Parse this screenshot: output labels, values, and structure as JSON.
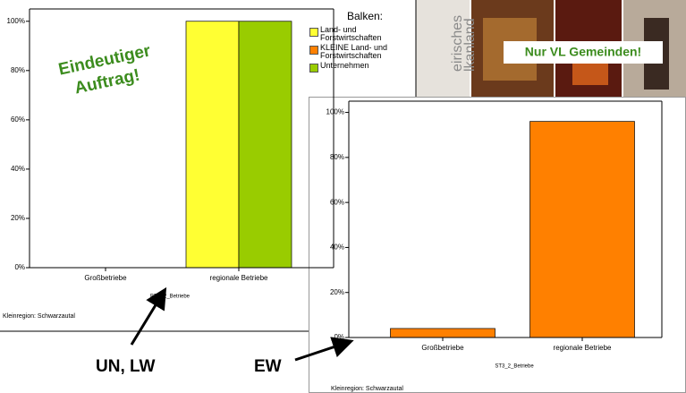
{
  "chart_data": [
    {
      "type": "bar",
      "categories": [
        "Großbetriebe",
        "regionale Betriebe"
      ],
      "series": [
        {
          "name": "Land- und Forstwirtschaften",
          "color": "#ffff33",
          "values": [
            0,
            100
          ]
        },
        {
          "name": "Unternehmen",
          "color": "#99cc00",
          "values": [
            0,
            100
          ]
        }
      ],
      "ylim": [
        0,
        105
      ],
      "yticks": [
        {
          "value": 0,
          "label": "0%"
        },
        {
          "value": 20,
          "label": "20%"
        },
        {
          "value": 40,
          "label": "40%"
        },
        {
          "value": 60,
          "label": "60%"
        },
        {
          "value": 80,
          "label": "80%"
        },
        {
          "value": 100,
          "label": "100%"
        }
      ],
      "x_label": "BR2_2_Betriebe",
      "note": "Kleinregion: Schwarzautal",
      "legend_title": "Balken:",
      "annotations": [
        "Eindeutiger",
        "Auftrag!",
        "UN, LW"
      ]
    },
    {
      "type": "bar",
      "categories": [
        "Großbetriebe",
        "regionale Betriebe"
      ],
      "series": [
        {
          "name": "KLEINE Land- und Forstwirtschaften",
          "color": "#ff8000",
          "values": [
            4,
            96
          ]
        }
      ],
      "ylim": [
        0,
        105
      ],
      "yticks": [
        {
          "value": 0,
          "label": "0%"
        },
        {
          "value": 20,
          "label": "20%"
        },
        {
          "value": 40,
          "label": "40%"
        },
        {
          "value": 60,
          "label": "60%"
        },
        {
          "value": 80,
          "label": "80%"
        },
        {
          "value": 100,
          "label": "100%"
        }
      ],
      "x_label": "ST3_2_Betriebe",
      "note": "Kleinregion: Schwarzautal",
      "annotations": [
        "Nur VL Gemeinden!",
        "EW"
      ]
    }
  ],
  "banner": {
    "texts": [
      "eirisches",
      "lkanland"
    ]
  }
}
